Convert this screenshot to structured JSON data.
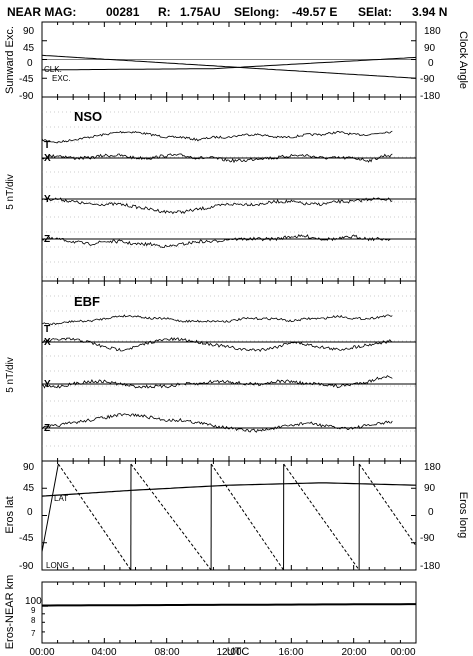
{
  "header": {
    "mission_label": "NEAR MAG:",
    "day": "00281",
    "r_label": "R:",
    "r_value": "1.75AU",
    "selong_label": "SElong:",
    "selong_value": "-49.57 E",
    "selat_label": "SElat:",
    "selat_value": "3.94 N"
  },
  "xaxis": {
    "label": "UTC",
    "ticks": [
      "00:00",
      "04:00",
      "08:00",
      "12:00",
      "16:00",
      "20:00",
      "00:00"
    ],
    "range_hours": [
      0,
      24
    ]
  },
  "chart_data": [
    {
      "type": "line",
      "panel": "orientation",
      "ylabel_left": "Sunward Exc.",
      "ylabel_right": "Clock Angle",
      "yticks_left": [
        "90",
        "45",
        "0",
        "-45",
        "-90"
      ],
      "yticks_right": [
        "180",
        "90",
        "0",
        "-90",
        "-180"
      ],
      "ylim": [
        -90,
        90
      ],
      "series": [
        {
          "name": "CLK.",
          "x": [
            0,
            24
          ],
          "y": [
            10,
            -45
          ]
        },
        {
          "name": "EXC.",
          "x": [
            0,
            11,
            24
          ],
          "y": [
            -25,
            -22,
            5
          ]
        }
      ]
    },
    {
      "type": "line",
      "panel": "NSO",
      "title": "NSO",
      "ylabel_left": "5 nT/div",
      "traces": [
        "T",
        "X",
        "Y",
        "Z"
      ],
      "x": [
        0,
        1,
        2,
        3,
        4,
        5,
        6,
        7,
        8,
        9,
        10,
        11,
        12,
        13,
        14,
        15,
        16,
        17,
        18,
        19,
        20,
        21,
        22,
        23,
        24
      ],
      "T": [
        2,
        1,
        2,
        3,
        4,
        5,
        5,
        4,
        3,
        3,
        2,
        3,
        3,
        4,
        4,
        3,
        3,
        4,
        4,
        5,
        4,
        4,
        5,
        5,
        4
      ],
      "X": [
        0,
        1,
        0,
        0,
        1,
        1,
        0,
        0,
        1,
        1,
        0,
        0,
        -1,
        -1,
        0,
        0,
        1,
        1,
        0,
        0,
        0,
        -1,
        1,
        1,
        0
      ],
      "Y": [
        0,
        0,
        -1,
        -2,
        -2,
        -2,
        -3,
        -4,
        -5,
        -5,
        -4,
        -3,
        -2,
        -2,
        -2,
        -1,
        -1,
        -2,
        -2,
        -1,
        -1,
        0,
        0,
        -1,
        -2
      ],
      "Z": [
        0,
        0,
        -1,
        -2,
        -1,
        -1,
        -2,
        -2,
        -3,
        -2,
        -1,
        -1,
        0,
        0,
        0,
        0,
        1,
        1,
        0,
        0,
        1,
        0,
        0,
        0,
        0
      ]
    },
    {
      "type": "line",
      "panel": "EBF",
      "title": "EBF",
      "ylabel_left": "5 nT/div",
      "traces": [
        "T",
        "X",
        "Y",
        "Z"
      ],
      "x": [
        0,
        1,
        2,
        3,
        4,
        5,
        6,
        7,
        8,
        9,
        10,
        11,
        12,
        13,
        14,
        15,
        16,
        17,
        18,
        19,
        20,
        21,
        22,
        23,
        24
      ],
      "T": [
        2,
        2,
        3,
        3,
        4,
        5,
        5,
        4,
        4,
        3,
        3,
        3,
        3,
        4,
        4,
        4,
        3,
        4,
        4,
        5,
        4,
        4,
        5,
        5,
        4
      ],
      "X": [
        0,
        1,
        1,
        0,
        -2,
        -3,
        -2,
        0,
        1,
        1,
        0,
        -1,
        -2,
        -3,
        -3,
        -2,
        0,
        -1,
        -2,
        -3,
        -2,
        -1,
        0,
        1,
        0
      ],
      "Y": [
        -1,
        -1,
        0,
        1,
        1,
        0,
        -1,
        -1,
        -1,
        0,
        0,
        1,
        1,
        0,
        0,
        1,
        1,
        0,
        0,
        -1,
        0,
        1,
        3,
        1,
        -1
      ],
      "Z": [
        0,
        1,
        2,
        3,
        4,
        5,
        5,
        4,
        3,
        3,
        2,
        1,
        0,
        -1,
        -1,
        0,
        1,
        2,
        1,
        0,
        0,
        1,
        2,
        3,
        3
      ]
    },
    {
      "type": "line",
      "panel": "eros",
      "ylabel_left": "Eros lat",
      "ylabel_right": "Eros long",
      "yticks_left": [
        "90",
        "45",
        "0",
        "-45",
        "-90"
      ],
      "yticks_right": [
        "180",
        "90",
        "0",
        "-90",
        "-180"
      ],
      "ylim": [
        -90,
        90
      ],
      "series": [
        {
          "name": "LAT",
          "x": [
            0,
            6,
            12,
            18,
            24
          ],
          "y": [
            32,
            42,
            50,
            54,
            50
          ]
        },
        {
          "name": "LONG",
          "x": [
            0,
            1.05,
            5.7,
            5.71,
            10.85,
            10.86,
            15.5,
            15.51,
            20.35,
            20.36,
            24
          ],
          "y": [
            -120,
            170,
            -180,
            170,
            -180,
            170,
            -180,
            170,
            -180,
            170,
            -100
          ]
        }
      ]
    },
    {
      "type": "line",
      "panel": "distance",
      "ylabel_left": "Eros-NEAR km",
      "yticks": [
        "100",
        "9",
        "8",
        "7"
      ],
      "scale": "log",
      "ylim": [
        60,
        140
      ],
      "series": [
        {
          "name": "Eros-NEAR km",
          "x": [
            0,
            24
          ],
          "y": [
            101,
            103
          ]
        }
      ]
    }
  ]
}
